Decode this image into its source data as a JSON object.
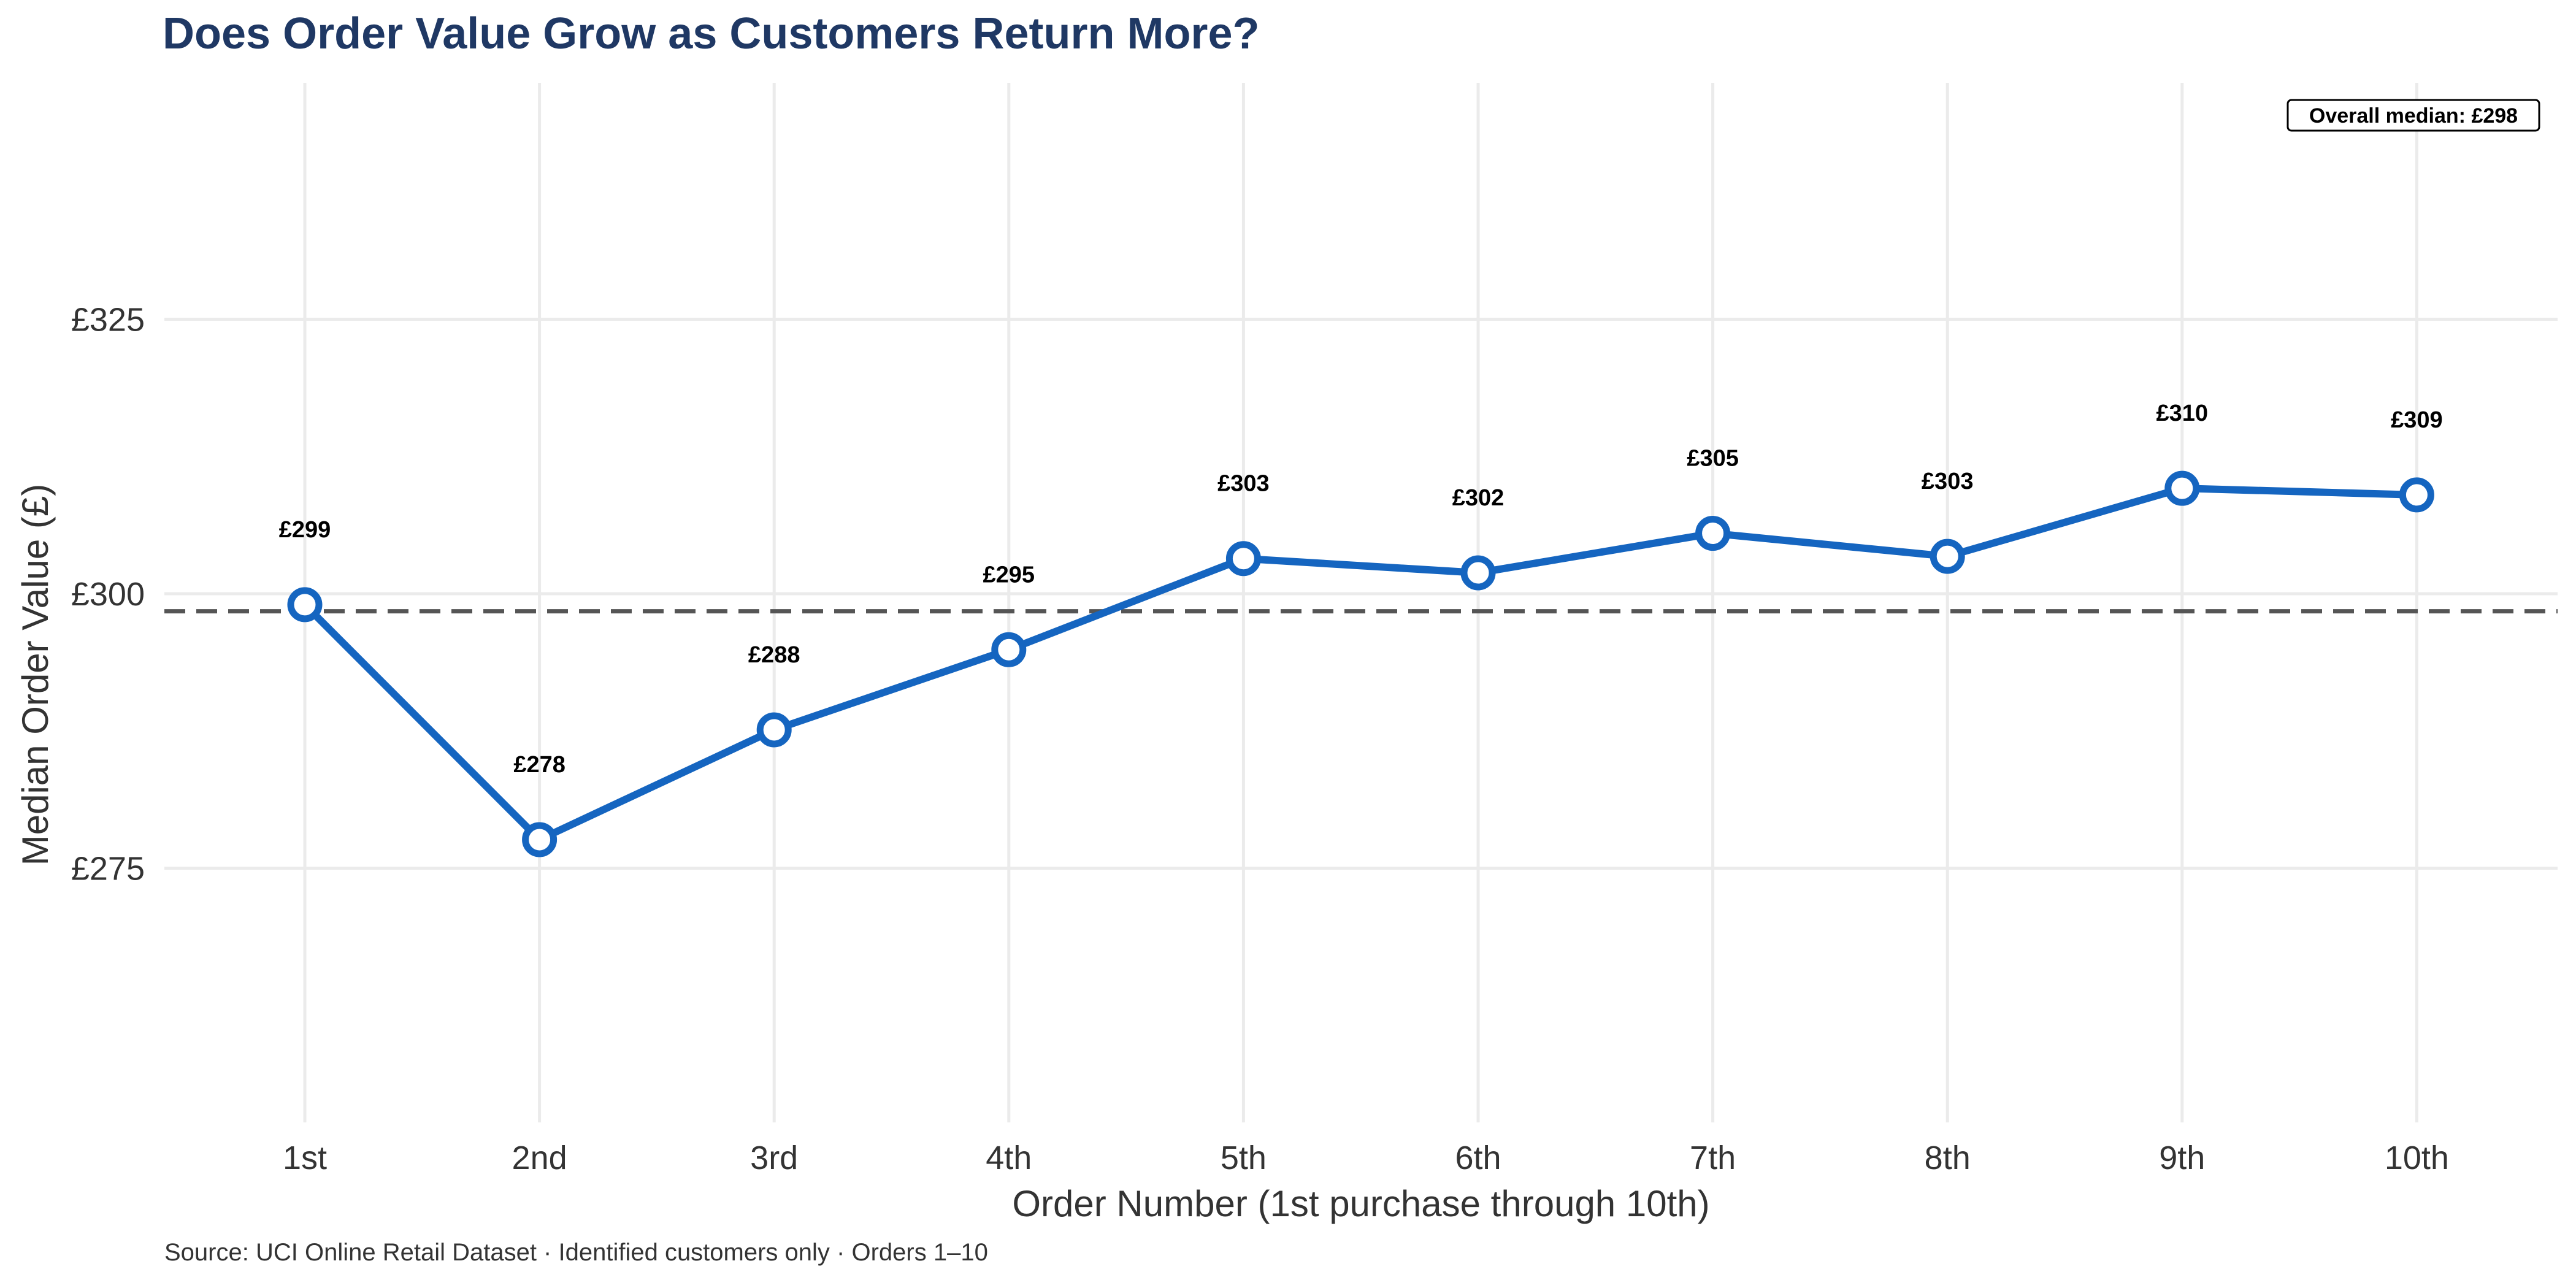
{
  "chart_data": {
    "type": "line",
    "title": "Does Order Value Grow as Customers Return More?",
    "xlabel": "Order Number (1st purchase through 10th)",
    "ylabel": "Median Order Value (£)",
    "categories": [
      "1st",
      "2nd",
      "3rd",
      "4th",
      "5th",
      "6th",
      "7th",
      "8th",
      "9th",
      "10th"
    ],
    "series": [
      {
        "values": [
          299,
          277.6,
          287.6,
          294.9,
          303.2,
          301.9,
          305.5,
          303.4,
          309.6,
          309.0
        ],
        "labels": [
          "£299",
          "£278",
          "£288",
          "£295",
          "£303",
          "£302",
          "£305",
          "£303",
          "£310",
          "£309"
        ],
        "color": "#1565c0"
      }
    ],
    "ylim": [
      253,
      346
    ],
    "yticks": [
      275,
      300,
      325
    ],
    "ytick_labels": [
      "£275",
      "£300",
      "£325"
    ],
    "reference_line": {
      "value": 298.4,
      "label": "Overall median: £298",
      "color": "#555555",
      "style": "dashed"
    },
    "grid": true,
    "source": "Source: UCI Online Retail Dataset · Identified customers only · Orders 1–10"
  }
}
